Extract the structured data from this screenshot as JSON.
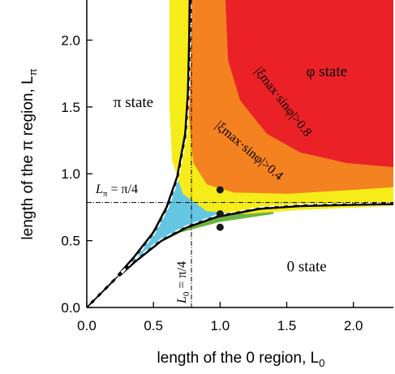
{
  "chart_data": {
    "type": "area",
    "title": "",
    "xlabel": "length of the 0 region, L",
    "xlabel_sub": "0",
    "ylabel": "length of the π region, L",
    "ylabel_sub": "π",
    "xlim": [
      0,
      2.3
    ],
    "ylim": [
      0,
      2.3
    ],
    "x_ticks": [
      {
        "value": 0.0,
        "label": "0.0"
      },
      {
        "value": 0.5,
        "label": "0.5"
      },
      {
        "value": 1.0,
        "label": "1.0"
      },
      {
        "value": 1.5,
        "label": "1.5"
      },
      {
        "value": 2.0,
        "label": "2.0"
      }
    ],
    "y_ticks": [
      {
        "value": 0.0,
        "label": "0.0"
      },
      {
        "value": 0.5,
        "label": "0.5"
      },
      {
        "value": 1.0,
        "label": "1.0"
      },
      {
        "value": 1.5,
        "label": "1.5"
      },
      {
        "value": 2.0,
        "label": "2.0"
      }
    ],
    "region_labels": [
      {
        "text": "π state",
        "x": 0.35,
        "y": 1.5
      },
      {
        "text": "φ state",
        "x": 1.8,
        "y": 1.73
      },
      {
        "text": "0 state",
        "x": 1.65,
        "y": 0.27
      }
    ],
    "contour_labels": [
      {
        "text": "|ξmax·sinφ|>0.8",
        "x": 1.45,
        "y": 1.52,
        "angle": 52
      },
      {
        "text": "|ξmax·sinφ|>0.4",
        "x": 1.2,
        "y": 1.15,
        "angle": 40
      }
    ],
    "reference_lines": [
      {
        "label_main": "L",
        "label_sub": "π",
        "label_rest": " = π/4",
        "orientation": "horizontal",
        "value": 0.785
      },
      {
        "label_main": "L",
        "label_sub": "0",
        "label_rest": " = π/4",
        "orientation": "vertical",
        "value": 0.785
      }
    ],
    "points": [
      {
        "x": 1.0,
        "y": 0.88
      },
      {
        "x": 1.0,
        "y": 0.7
      },
      {
        "x": 1.0,
        "y": 0.6
      }
    ],
    "colors": {
      "red": "#ea2228",
      "orange": "#f58220",
      "yellow": "#f6ec1a",
      "cyan": "#65c6e2",
      "green": "#6db33f",
      "boundary": "#000000",
      "dashed": "#ffffff"
    }
  }
}
